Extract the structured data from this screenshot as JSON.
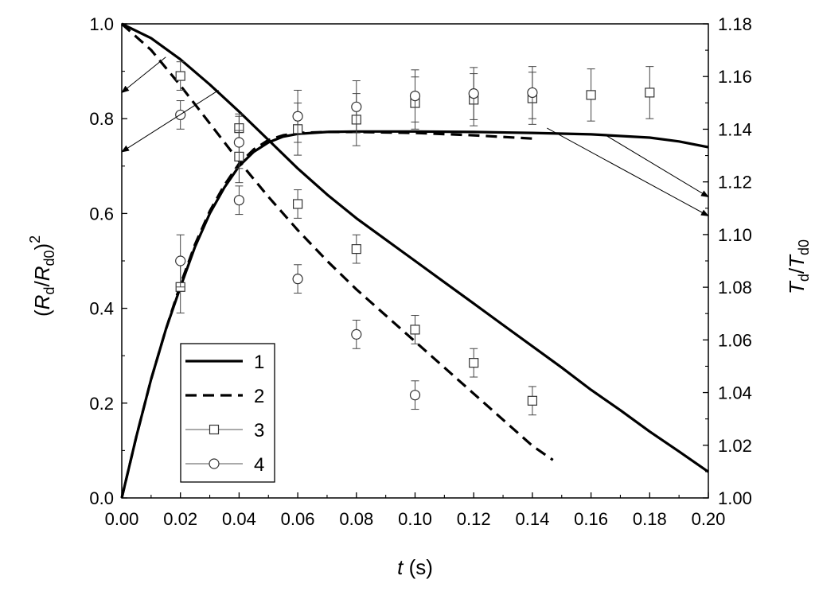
{
  "chart_data": {
    "type": "line",
    "x_axis": {
      "label_italic": "t",
      "label_rest": " (s)",
      "range": [
        0,
        0.2
      ],
      "ticks": [
        "0.00",
        "0.02",
        "0.04",
        "0.06",
        "0.08",
        "0.10",
        "0.12",
        "0.14",
        "0.16",
        "0.18",
        "0.20"
      ]
    },
    "y_left": {
      "label_parts": [
        {
          "t": "(",
          "italic": false
        },
        {
          "t": "R",
          "italic": true
        },
        {
          "t": "d",
          "sub": true
        },
        {
          "t": "/",
          "italic": false
        },
        {
          "t": "R",
          "italic": true
        },
        {
          "t": "d0",
          "sub": true
        },
        {
          "t": ")",
          "italic": false
        },
        {
          "t": "2",
          "sup": true
        }
      ],
      "range": [
        0,
        1
      ],
      "ticks": [
        "0.0",
        "0.2",
        "0.4",
        "0.6",
        "0.8",
        "1.0"
      ]
    },
    "y_right": {
      "label_parts": [
        {
          "t": "T",
          "italic": true
        },
        {
          "t": "d",
          "sub": true
        },
        {
          "t": "/",
          "italic": false
        },
        {
          "t": "T",
          "italic": true
        },
        {
          "t": "d0",
          "sub": true
        }
      ],
      "range": [
        1.0,
        1.18
      ],
      "ticks": [
        "1.00",
        "1.02",
        "1.04",
        "1.06",
        "1.08",
        "1.10",
        "1.12",
        "1.14",
        "1.16",
        "1.18"
      ]
    },
    "legend": {
      "placement": "lower-left",
      "entries": [
        {
          "label": "1",
          "style": "solid"
        },
        {
          "label": "2",
          "style": "dashed"
        },
        {
          "label": "3",
          "style": "square"
        },
        {
          "label": "4",
          "style": "circle"
        }
      ]
    },
    "lines": [
      {
        "id": "1",
        "quantity": "radius",
        "style": "solid",
        "x": [
          0,
          0.01,
          0.02,
          0.03,
          0.04,
          0.05,
          0.06,
          0.07,
          0.08,
          0.09,
          0.1,
          0.11,
          0.12,
          0.13,
          0.14,
          0.15,
          0.16,
          0.17,
          0.18,
          0.19,
          0.2
        ],
        "y": [
          1.0,
          0.97,
          0.925,
          0.872,
          0.815,
          0.755,
          0.695,
          0.64,
          0.59,
          0.545,
          0.5,
          0.455,
          0.41,
          0.365,
          0.32,
          0.275,
          0.228,
          0.185,
          0.14,
          0.098,
          0.055
        ]
      },
      {
        "id": "2",
        "quantity": "radius",
        "style": "dashed",
        "x": [
          0,
          0.01,
          0.02,
          0.03,
          0.04,
          0.05,
          0.06,
          0.07,
          0.08,
          0.09,
          0.1,
          0.11,
          0.12,
          0.13,
          0.14,
          0.147
        ],
        "y": [
          1.0,
          0.945,
          0.87,
          0.79,
          0.71,
          0.635,
          0.565,
          0.5,
          0.44,
          0.385,
          0.33,
          0.275,
          0.22,
          0.165,
          0.11,
          0.08
        ]
      },
      {
        "id": "1",
        "quantity": "temperature",
        "style": "solid",
        "x": [
          0,
          0.005,
          0.01,
          0.015,
          0.02,
          0.025,
          0.03,
          0.035,
          0.04,
          0.045,
          0.05,
          0.055,
          0.06,
          0.07,
          0.08,
          0.1,
          0.12,
          0.14,
          0.16,
          0.18,
          0.19,
          0.2
        ],
        "y": [
          0.0,
          0.13,
          0.25,
          0.355,
          0.445,
          0.53,
          0.6,
          0.655,
          0.7,
          0.73,
          0.75,
          0.762,
          0.768,
          0.772,
          0.773,
          0.773,
          0.772,
          0.77,
          0.767,
          0.76,
          0.752,
          0.74
        ]
      },
      {
        "id": "2",
        "quantity": "temperature",
        "style": "dashed",
        "x": [
          0,
          0.005,
          0.01,
          0.015,
          0.02,
          0.025,
          0.03,
          0.035,
          0.04,
          0.045,
          0.05,
          0.055,
          0.06,
          0.07,
          0.08,
          0.1,
          0.12,
          0.14
        ],
        "y": [
          0.0,
          0.13,
          0.25,
          0.355,
          0.45,
          0.535,
          0.605,
          0.66,
          0.705,
          0.735,
          0.755,
          0.765,
          0.77,
          0.772,
          0.772,
          0.77,
          0.765,
          0.758
        ]
      }
    ],
    "points": [
      {
        "id": "3",
        "quantity": "radius",
        "marker": "square",
        "x": [
          0.02,
          0.04,
          0.06,
          0.08,
          0.1,
          0.12,
          0.14
        ],
        "y": [
          0.89,
          0.78,
          0.62,
          0.525,
          0.355,
          0.285,
          0.205
        ],
        "err": [
          0.03,
          0.03,
          0.03,
          0.03,
          0.03,
          0.03,
          0.03
        ]
      },
      {
        "id": "4",
        "quantity": "radius",
        "marker": "circle",
        "x": [
          0.02,
          0.04,
          0.06,
          0.08,
          0.1
        ],
        "y": [
          0.808,
          0.628,
          0.462,
          0.345,
          0.217
        ],
        "err": [
          0.03,
          0.03,
          0.03,
          0.03,
          0.03
        ]
      },
      {
        "id": "3",
        "quantity": "temperature",
        "marker": "square",
        "x": [
          0.02,
          0.04,
          0.06,
          0.08,
          0.1,
          0.12,
          0.14,
          0.16,
          0.18
        ],
        "y": [
          0.445,
          0.72,
          0.778,
          0.798,
          0.833,
          0.84,
          0.843,
          0.85,
          0.855
        ],
        "err": [
          0.055,
          0.055,
          0.055,
          0.055,
          0.055,
          0.055,
          0.055,
          0.055,
          0.055
        ]
      },
      {
        "id": "4",
        "quantity": "temperature",
        "marker": "circle",
        "x": [
          0.02,
          0.04,
          0.06,
          0.08,
          0.1,
          0.12,
          0.14
        ],
        "y": [
          0.5,
          0.75,
          0.805,
          0.825,
          0.848,
          0.853,
          0.855
        ],
        "err": [
          0.055,
          0.055,
          0.055,
          0.055,
          0.055,
          0.055,
          0.055
        ]
      }
    ],
    "axis_arrows": [
      {
        "side": "left",
        "from_x": 0.015,
        "from_y": 0.93,
        "to_y": 0.855
      },
      {
        "side": "left",
        "from_x": 0.033,
        "from_y": 0.86,
        "to_y": 0.73
      },
      {
        "side": "right",
        "from_x": 0.165,
        "from_y": 0.765,
        "to_y": 0.635
      },
      {
        "side": "right",
        "from_x": 0.145,
        "from_y": 0.78,
        "to_y": 0.595
      }
    ]
  }
}
